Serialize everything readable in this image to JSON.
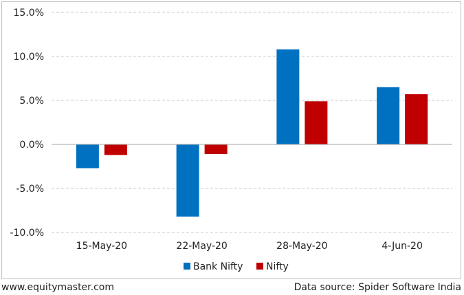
{
  "chart_data": {
    "type": "bar",
    "categories": [
      "15-May-20",
      "22-May-20",
      "28-May-20",
      "4-Jun-20"
    ],
    "series": [
      {
        "name": "Bank Nifty",
        "color": "#0070c0",
        "values": [
          -2.7,
          -8.2,
          10.8,
          6.5
        ]
      },
      {
        "name": "Nifty",
        "color": "#c00000",
        "values": [
          -1.2,
          -1.1,
          4.9,
          5.7
        ]
      }
    ],
    "ylim": [
      -10,
      15
    ],
    "yticks": [
      15,
      10,
      5,
      0,
      -5,
      -10
    ],
    "ytick_labels": [
      "15.0%",
      "10.0%",
      "5.0%",
      "0.0%",
      "-5.0%",
      "-10.0%"
    ],
    "grid": true,
    "legend_position": "bottom"
  },
  "footer": {
    "source_site": "www.equitymaster.com",
    "data_source": "Data source: Spider Software India"
  }
}
